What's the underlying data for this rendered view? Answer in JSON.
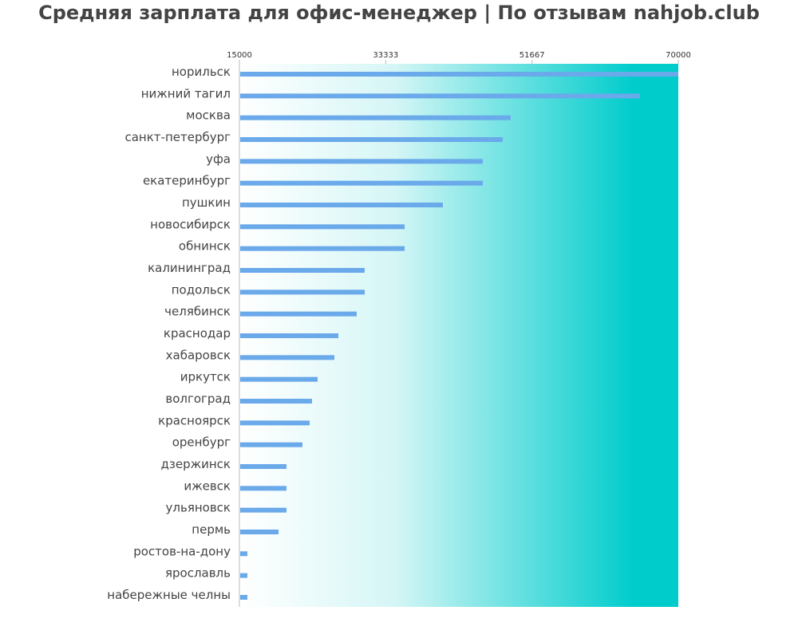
{
  "chart_data": {
    "type": "bar",
    "orientation": "horizontal",
    "title": "Средняя зарплата для офис-менеджер | По отзывам nahjob.club",
    "xlim": [
      15000,
      70000
    ],
    "x_ticks": [
      "15000",
      "33333",
      "51667",
      "70000"
    ],
    "x_tick_values": [
      15000,
      33333,
      51667,
      70000
    ],
    "categories": [
      "норильск",
      "нижний тагил",
      "москва",
      "санкт-петербург",
      "уфа",
      "екатеринбург",
      "пушкин",
      "новосибирск",
      "обнинск",
      "калининград",
      "подольск",
      "челябинск",
      "краснодар",
      "хабаровск",
      "иркутск",
      "волгоград",
      "красноярск",
      "оренбург",
      "дзержинск",
      "ижевск",
      "ульяновск",
      "пермь",
      "ростов-на-дону",
      "ярославль",
      "набережные челны"
    ],
    "values": [
      70000,
      65200,
      49000,
      48000,
      45500,
      45500,
      40500,
      35700,
      35700,
      30700,
      30700,
      29700,
      27400,
      26900,
      24800,
      24100,
      23800,
      22900,
      20900,
      20900,
      20900,
      19900,
      16000,
      16000,
      16000
    ],
    "colors": {
      "bar": "#6aa9ea",
      "background_start": "#ffffff",
      "background_end": "#00cccc",
      "axis": "#bbbbbb"
    },
    "grid": false,
    "legend": "none"
  }
}
